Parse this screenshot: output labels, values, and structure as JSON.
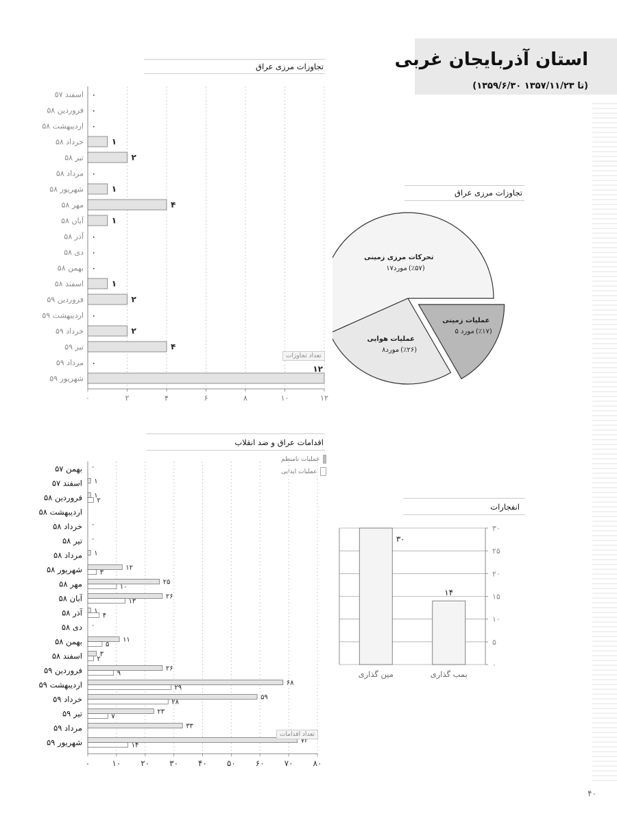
{
  "header": {
    "title": "استان آذربایجان غربی",
    "subtitle": "(۱۳۵۹/۶/۳۰ تا ۱۳۵۷/۱۱/۲۳)",
    "page_number": "۴۰"
  },
  "chart_data": [
    {
      "id": "border_violations_monthly",
      "type": "bar",
      "orientation": "horizontal",
      "title": "تجاوزات مرزی عراق",
      "legend": [
        "تعداد تجاوزات"
      ],
      "categories": [
        "اسفند ۵۷",
        "فروردین ۵۸",
        "اردیبهشت ۵۸",
        "خرداد ۵۸",
        "تیر ۵۸",
        "مرداد ۵۸",
        "شهریور ۵۸",
        "مهر ۵۸",
        "آبان ۵۸",
        "آذر ۵۸",
        "دی ۵۸",
        "بهمن ۵۸",
        "اسفند ۵۸",
        "فروردین ۵۹",
        "اردیبهشت ۵۹",
        "خرداد ۵۹",
        "تیر ۵۹",
        "مرداد ۵۹",
        "شهریور ۵۹"
      ],
      "values": [
        0,
        0,
        0,
        1,
        2,
        0,
        1,
        4,
        1,
        0,
        0,
        0,
        1,
        2,
        0,
        2,
        4,
        0,
        12
      ],
      "value_labels": [
        "۰",
        "۰",
        "۰",
        "۱",
        "۲",
        "۰",
        "۱",
        "۴",
        "۱",
        "۰",
        "۰",
        "۰",
        "۱",
        "۲",
        "۰",
        "۲",
        "۴",
        "۰",
        "۱۲"
      ],
      "xlim": [
        0,
        12
      ],
      "xticks": [
        0,
        2,
        4,
        6,
        8,
        10,
        12
      ],
      "xtick_labels": [
        "۰",
        "۲",
        "۴",
        "۶",
        "۸",
        "۱۰",
        "۱۲"
      ],
      "bar_color": "#e3e3e3"
    },
    {
      "id": "border_violations_pie",
      "type": "pie",
      "title": "تجاوزات مرزی عراق",
      "slices": [
        {
          "name": "تحرکات مرزی زمینی",
          "count_label": "۱۷مورد",
          "percent_label": "(٪۵۷)",
          "value": 17,
          "color": "#f4f4f4"
        },
        {
          "name": "عملیات هوایی",
          "count_label": "۸مورد",
          "percent_label": "(٪۲۶)",
          "value": 8,
          "color": "#e8e8e8"
        },
        {
          "name": "عملیات زمینی",
          "count_label": "۵ مورد",
          "percent_label": "(٪۱۷)",
          "value": 5,
          "color": "#b8b8b8"
        }
      ]
    },
    {
      "id": "iraq_counterrevolution_actions",
      "type": "bar",
      "orientation": "horizontal",
      "title": "اقدامات عراق و ضد انقلاب",
      "legend": [
        "عملیات نامنظم",
        "عملیات ایذایی"
      ],
      "count_label": "تعداد اقدامات",
      "categories": [
        "بهمن ۵۷",
        "اسفند ۵۷",
        "فروردین ۵۸",
        "اردیبهشت ۵۸",
        "خرداد ۵۸",
        "تیر ۵۸",
        "مرداد ۵۸",
        "شهریور ۵۸",
        "مهر ۵۸",
        "آبان ۵۸",
        "آذر ۵۸",
        "دی ۵۸",
        "بهمن ۵۸",
        "اسفند ۵۸",
        "فروردین ۵۹",
        "اردیبهشت ۵۹",
        "خرداد ۵۹",
        "تیر ۵۹",
        "مرداد ۵۹",
        "شهریور ۵۹"
      ],
      "series": [
        {
          "name": "عملیات نامنظم",
          "color": "#e3e3e3",
          "values": [
            0,
            1,
            1,
            0,
            0,
            0,
            1,
            12,
            25,
            26,
            1,
            0,
            11,
            3,
            26,
            68,
            59,
            23,
            33,
            73
          ],
          "value_labels": [
            "۰",
            "۱",
            "۱",
            "",
            "۰",
            "۰",
            "۱",
            "۱۲",
            "۲۵",
            "۲۶",
            "۱",
            "۰",
            "۱۱",
            "۳",
            "۲۶",
            "۶۸",
            "۵۹",
            "۲۳",
            "۳۳",
            "۷۳"
          ]
        },
        {
          "name": "عملیات ایذایی",
          "color": "#ffffff",
          "values": [
            0,
            0,
            2,
            0,
            0,
            0,
            0,
            3,
            10,
            13,
            4,
            0,
            5,
            2,
            9,
            29,
            28,
            7,
            0,
            14
          ],
          "value_labels": [
            "",
            "",
            "۲",
            "",
            "",
            "",
            "",
            "۳",
            "۱۰",
            "۱۳",
            "۴",
            "",
            "۵",
            "۲",
            "۹",
            "۲۹",
            "۲۸",
            "۷",
            "",
            "۱۴"
          ]
        }
      ],
      "xlim": [
        0,
        80
      ],
      "xticks": [
        0,
        10,
        20,
        30,
        40,
        50,
        60,
        70,
        80
      ],
      "xtick_labels": [
        "۰",
        "۱۰",
        "۲۰",
        "۳۰",
        "۴۰",
        "۵۰",
        "۶۰",
        "۷۰",
        "۸۰"
      ]
    },
    {
      "id": "explosions",
      "type": "bar",
      "orientation": "vertical",
      "title": "انفجارات",
      "categories": [
        "مین گذاری",
        "بمب گذاری"
      ],
      "values": [
        30,
        14
      ],
      "value_labels": [
        "۳۰",
        "۱۴"
      ],
      "ylim": [
        0,
        30
      ],
      "yticks": [
        0,
        5,
        10,
        15,
        20,
        25,
        30
      ],
      "ytick_labels": [
        "۰",
        "۵",
        "۱۰",
        "۱۵",
        "۲۰",
        "۲۵",
        "۳۰"
      ],
      "bar_color": "#f4f4f4"
    }
  ]
}
